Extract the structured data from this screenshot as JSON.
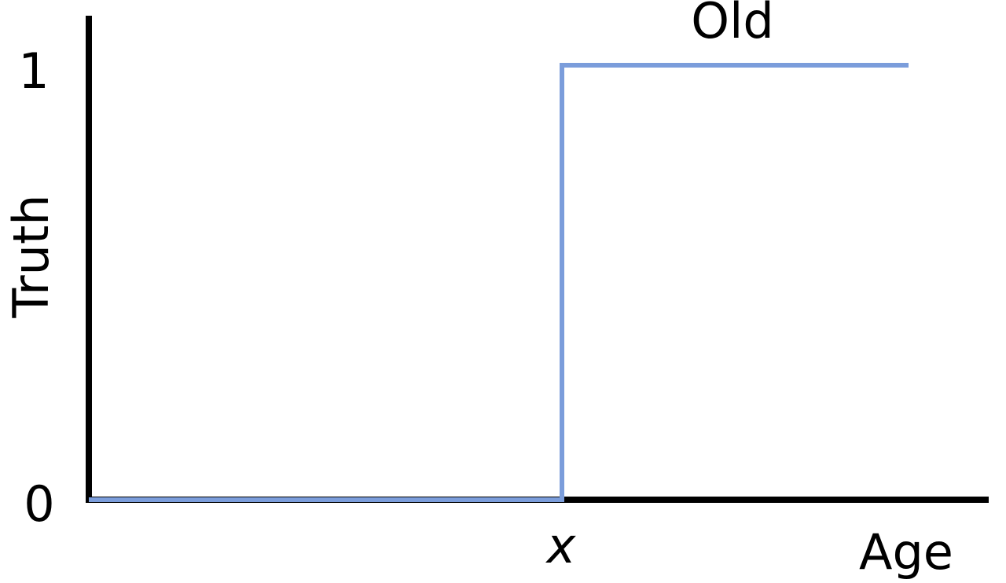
{
  "diagram": {
    "y_axis_label": "Truth",
    "x_axis_label": "Age",
    "y_tick_top": "1",
    "y_tick_bottom": "0",
    "threshold_label": "x",
    "curve_label": "Old",
    "colors": {
      "axis": "#000000",
      "curve": "#7b9ddb",
      "background": "#ffffff"
    }
  }
}
